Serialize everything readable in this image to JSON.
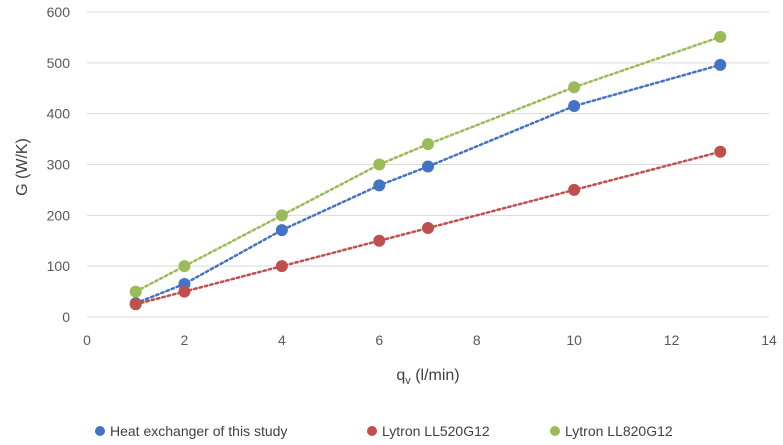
{
  "chart_data": {
    "type": "scatter",
    "xlabel_main": "q",
    "xlabel_sub": "v",
    "xlabel_rest": " (l/min)",
    "ylabel": "G (W/K)",
    "xlim": [
      0,
      14
    ],
    "ylim": [
      0,
      600
    ],
    "xticks": [
      0,
      2,
      4,
      6,
      8,
      10,
      12,
      14
    ],
    "yticks": [
      0,
      100,
      200,
      300,
      400,
      500,
      600
    ],
    "grid": "horizontal",
    "legend_position": "bottom",
    "trendline": "dotted",
    "series": [
      {
        "name": "Heat exchanger of this study",
        "color": "#4472C4",
        "x": [
          1,
          2,
          4,
          6,
          7,
          10,
          13
        ],
        "y": [
          27,
          65,
          171,
          259,
          296,
          415,
          496
        ]
      },
      {
        "name": "Lytron LL520G12",
        "color": "#C0504D",
        "x": [
          1,
          2,
          4,
          6,
          7,
          10,
          13
        ],
        "y": [
          25,
          50,
          100,
          150,
          175,
          250,
          325
        ]
      },
      {
        "name": "Lytron LL820G12",
        "color": "#9BBB59",
        "x": [
          1,
          2,
          4,
          6,
          7,
          10,
          13
        ],
        "y": [
          50,
          100,
          200,
          300,
          340,
          452,
          551
        ]
      }
    ]
  }
}
